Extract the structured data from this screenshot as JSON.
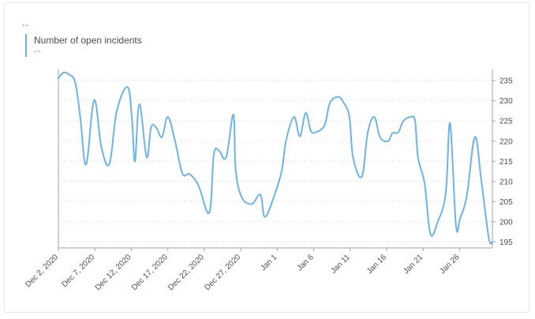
{
  "header": {
    "value": "--"
  },
  "colors": {
    "line": "#6cb4e8",
    "grid": "#cfd5db",
    "axis": "#9aa3ab"
  },
  "chart_data": {
    "type": "line",
    "title": "",
    "xlabel": "",
    "ylabel": "",
    "ylim": [
      193.5,
      237
    ],
    "y_ticks": [
      195,
      200,
      205,
      210,
      215,
      220,
      225,
      230,
      235
    ],
    "x_tick_labels": [
      "Dec 2, 2020",
      "Dec 7, 2020",
      "Dec 12, 2020",
      "Dec 17, 2020",
      "Dec 22, 2020",
      "Dec 27, 2020",
      "Jan 1",
      "Jan 6",
      "Jan 11",
      "Jan 16",
      "Jan 21",
      "Jan 26"
    ],
    "x_tick_days": [
      0,
      5,
      10,
      15,
      20,
      25,
      30,
      35,
      40,
      45,
      50,
      55
    ],
    "x_range_days": [
      0,
      59.5
    ],
    "grid": true,
    "legend_position": "top-left",
    "series": [
      {
        "name": "Number of open incidents",
        "legend_value": "--",
        "points": [
          [
            0.0,
            235.6
          ],
          [
            0.7,
            237.0
          ],
          [
            1.5,
            236.5
          ],
          [
            2.3,
            234.6
          ],
          [
            3.0,
            226.0
          ],
          [
            3.8,
            214.2
          ],
          [
            4.9,
            230.2
          ],
          [
            5.9,
            218.5
          ],
          [
            7.0,
            214.4
          ],
          [
            8.0,
            227.4
          ],
          [
            9.5,
            233.4
          ],
          [
            10.1,
            225.0
          ],
          [
            10.5,
            215.0
          ],
          [
            11.1,
            229.2
          ],
          [
            12.1,
            216.0
          ],
          [
            12.7,
            223.4
          ],
          [
            13.4,
            223.4
          ],
          [
            14.2,
            221.0
          ],
          [
            15.0,
            226.0
          ],
          [
            16.0,
            220.0
          ],
          [
            17.0,
            212.0
          ],
          [
            18.0,
            211.8
          ],
          [
            19.2,
            209.0
          ],
          [
            20.7,
            202.3
          ],
          [
            21.3,
            216.6
          ],
          [
            22.0,
            217.7
          ],
          [
            23.0,
            216.0
          ],
          [
            24.0,
            226.6
          ],
          [
            24.3,
            213.0
          ],
          [
            25.1,
            206.2
          ],
          [
            26.5,
            204.4
          ],
          [
            27.7,
            206.7
          ],
          [
            28.3,
            201.2
          ],
          [
            29.5,
            206.0
          ],
          [
            30.6,
            212.5
          ],
          [
            31.2,
            220.0
          ],
          [
            32.3,
            226.0
          ],
          [
            33.1,
            221.2
          ],
          [
            33.9,
            227.0
          ],
          [
            34.6,
            222.6
          ],
          [
            35.3,
            222.2
          ],
          [
            36.5,
            224.0
          ],
          [
            37.2,
            229.4
          ],
          [
            38.3,
            231.0
          ],
          [
            39.1,
            229.6
          ],
          [
            39.9,
            226.0
          ],
          [
            40.4,
            216.0
          ],
          [
            41.6,
            211.2
          ],
          [
            42.4,
            222.0
          ],
          [
            43.3,
            226.0
          ],
          [
            44.1,
            221.0
          ],
          [
            45.2,
            220.0
          ],
          [
            45.8,
            222.0
          ],
          [
            46.6,
            222.2
          ],
          [
            47.3,
            225.0
          ],
          [
            48.3,
            226.0
          ],
          [
            48.9,
            225.0
          ],
          [
            49.3,
            216.0
          ],
          [
            50.2,
            209.6
          ],
          [
            51.0,
            197.0
          ],
          [
            52.0,
            200.0
          ],
          [
            53.1,
            207.0
          ],
          [
            53.7,
            224.4
          ],
          [
            54.5,
            199.2
          ],
          [
            55.1,
            201.0
          ],
          [
            56.0,
            206.5
          ],
          [
            57.1,
            221.0
          ],
          [
            58.0,
            210.0
          ],
          [
            59.0,
            196.0
          ],
          [
            59.5,
            195.0
          ]
        ]
      }
    ]
  }
}
